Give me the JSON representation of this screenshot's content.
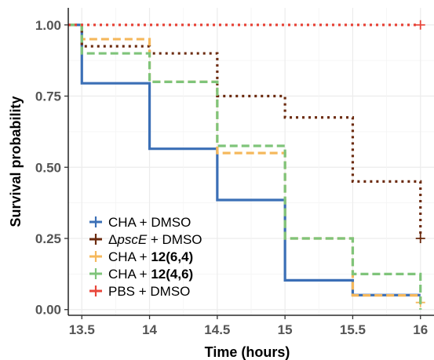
{
  "chart_data": {
    "type": "line",
    "step": true,
    "xlabel": "Time (hours)",
    "ylabel": "Survival probability",
    "xlim": [
      13.4,
      16.1
    ],
    "ylim": [
      -0.02,
      1.06
    ],
    "x_ticks": [
      13.5,
      14,
      14.5,
      15,
      15.5,
      16
    ],
    "x_tick_labels": [
      "13.5",
      "14",
      "14.5",
      "15",
      "15.5",
      "16"
    ],
    "y_ticks": [
      0,
      0.25,
      0.5,
      0.75,
      1
    ],
    "y_tick_labels": [
      "0.00",
      "0.25",
      "0.50",
      "0.75",
      "1.00"
    ],
    "grid": true,
    "legend_position": "bottom-left",
    "series": [
      {
        "label_parts": [
          {
            "text": "CHA + DMSO",
            "style": "normal"
          }
        ],
        "color": "#3b6fb6",
        "dash": "solid",
        "x": [
          13.4,
          13.5,
          14,
          14.5,
          15,
          15.5,
          16
        ],
        "y": [
          1.0,
          0.795,
          0.565,
          0.385,
          0.103,
          0.051,
          0.051
        ],
        "censor_x": []
      },
      {
        "label_parts": [
          {
            "text": "Δ",
            "style": "normal"
          },
          {
            "text": "pscE",
            "style": "italic"
          },
          {
            "text": " + DMSO",
            "style": "normal"
          }
        ],
        "color": "#6b2a0e",
        "dash": "dotted",
        "x": [
          13.4,
          13.5,
          14,
          14.5,
          15,
          15.5,
          16
        ],
        "y": [
          1.0,
          0.925,
          0.9,
          0.75,
          0.675,
          0.45,
          0.25
        ],
        "censor_x": [
          16
        ]
      },
      {
        "label_parts": [
          {
            "text": "CHA + ",
            "style": "normal"
          },
          {
            "text": "12(6,4)",
            "style": "bold"
          }
        ],
        "color": "#f5b85c",
        "dash": "dashed",
        "x": [
          13.4,
          13.5,
          14,
          14.5,
          15,
          15.5,
          16
        ],
        "y": [
          1.0,
          0.95,
          0.8,
          0.55,
          0.25,
          0.05,
          0.025
        ],
        "censor_x": [
          16
        ]
      },
      {
        "label_parts": [
          {
            "text": "CHA + ",
            "style": "normal"
          },
          {
            "text": "12(4,6)",
            "style": "bold"
          }
        ],
        "color": "#7fc47a",
        "dash": "dashed",
        "x": [
          13.4,
          13.5,
          14,
          14.5,
          15,
          15.5,
          16
        ],
        "y": [
          1.0,
          0.9,
          0.8,
          0.575,
          0.25,
          0.125,
          0.0
        ],
        "censor_x": []
      },
      {
        "label_parts": [
          {
            "text": "PBS + DMSO",
            "style": "normal"
          }
        ],
        "color": "#e8463a",
        "dash": "dotted",
        "x": [
          13.4,
          16
        ],
        "y": [
          1.0,
          1.0
        ],
        "censor_x": [
          16
        ]
      }
    ]
  }
}
